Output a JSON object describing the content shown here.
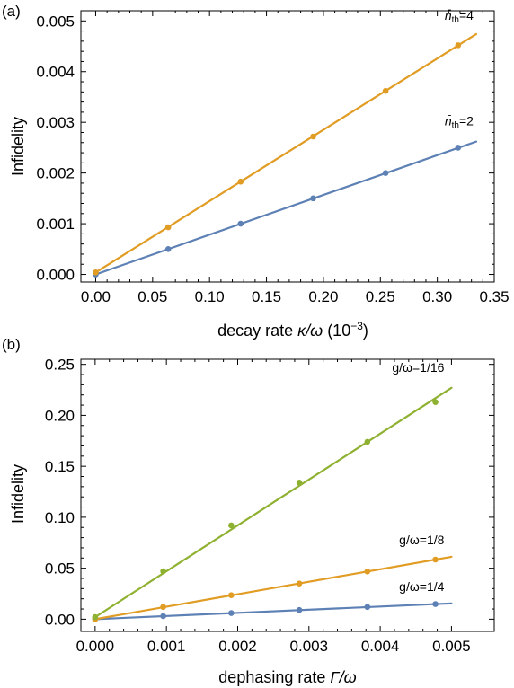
{
  "chart_data": [
    {
      "panel_tag": "(a)",
      "type": "line",
      "xlabel_main": "decay rate ",
      "xlabel_var": "κ/ω",
      "xlabel_unit": " (10",
      "xlabel_exp": "−3",
      "xlabel_close": ")",
      "ylabel": "Infidelity",
      "xlim": [
        -0.013,
        0.35
      ],
      "ylim": [
        -0.00015,
        0.0052
      ],
      "xticks": [
        "0.00",
        "0.05",
        "0.10",
        "0.15",
        "0.20",
        "0.25",
        "0.30",
        "0.35"
      ],
      "yticks": [
        "0.000",
        "0.001",
        "0.002",
        "0.003",
        "0.004",
        "0.005"
      ],
      "grid": false,
      "series": [
        {
          "label_sym": "n̄",
          "label_sub": "th",
          "label_val": "=2",
          "color": "#5E81B5",
          "points": [
            [
              0.0,
              0.0
            ],
            [
              0.0637,
              0.0005
            ],
            [
              0.1273,
              0.001
            ],
            [
              0.191,
              0.0015
            ],
            [
              0.2546,
              0.002
            ],
            [
              0.3183,
              0.0025
            ]
          ],
          "fit": [
            [
              0.0,
              0.0
            ],
            [
              0.3342,
              0.00262
            ]
          ]
        },
        {
          "label_sym": "n̄",
          "label_sub": "th",
          "label_val": "=4",
          "color": "#E19C24",
          "points": [
            [
              0.0,
              4e-05
            ],
            [
              0.0637,
              0.00093
            ],
            [
              0.1273,
              0.00183
            ],
            [
              0.191,
              0.00272
            ],
            [
              0.2546,
              0.00362
            ],
            [
              0.3183,
              0.00452
            ]
          ],
          "fit": [
            [
              0.0,
              4e-05
            ],
            [
              0.3342,
              0.00474
            ]
          ]
        }
      ]
    },
    {
      "panel_tag": "(b)",
      "type": "line",
      "xlabel_main": "dephasing rate ",
      "xlabel_var": "Γ/ω",
      "ylabel": "Infidelity",
      "xlim": [
        -0.0002,
        0.0056
      ],
      "ylim": [
        -0.012,
        0.255
      ],
      "xticks": [
        "0.000",
        "0.001",
        "0.002",
        "0.003",
        "0.004",
        "0.005"
      ],
      "yticks": [
        "0.00",
        "0.05",
        "0.10",
        "0.15",
        "0.20",
        "0.25"
      ],
      "grid": false,
      "series": [
        {
          "label": "g/ω=1/4",
          "color": "#5E81B5",
          "points": [
            [
              0.0,
              0.0
            ],
            [
              0.000955,
              0.003
            ],
            [
              0.00191,
              0.006
            ],
            [
              0.002865,
              0.009
            ],
            [
              0.00382,
              0.012
            ],
            [
              0.004775,
              0.0148
            ]
          ],
          "fit": [
            [
              0.0,
              0.0
            ],
            [
              0.005,
              0.0155
            ]
          ]
        },
        {
          "label": "g/ω=1/8",
          "color": "#E19C24",
          "points": [
            [
              0.0,
              0.0
            ],
            [
              0.000955,
              0.012
            ],
            [
              0.00191,
              0.0235
            ],
            [
              0.002865,
              0.035
            ],
            [
              0.00382,
              0.0468
            ],
            [
              0.004775,
              0.0585
            ]
          ],
          "fit": [
            [
              0.0,
              0.0
            ],
            [
              0.005,
              0.0612
            ]
          ]
        },
        {
          "label": "g/ω=1/16",
          "color": "#8FB131",
          "points": [
            [
              0.0,
              0.002
            ],
            [
              0.000955,
              0.047
            ],
            [
              0.00191,
              0.092
            ],
            [
              0.002865,
              0.134
            ],
            [
              0.00382,
              0.174
            ],
            [
              0.004775,
              0.213
            ]
          ],
          "fit": [
            [
              0.0,
              0.002
            ],
            [
              0.005,
              0.227
            ]
          ]
        }
      ]
    }
  ]
}
